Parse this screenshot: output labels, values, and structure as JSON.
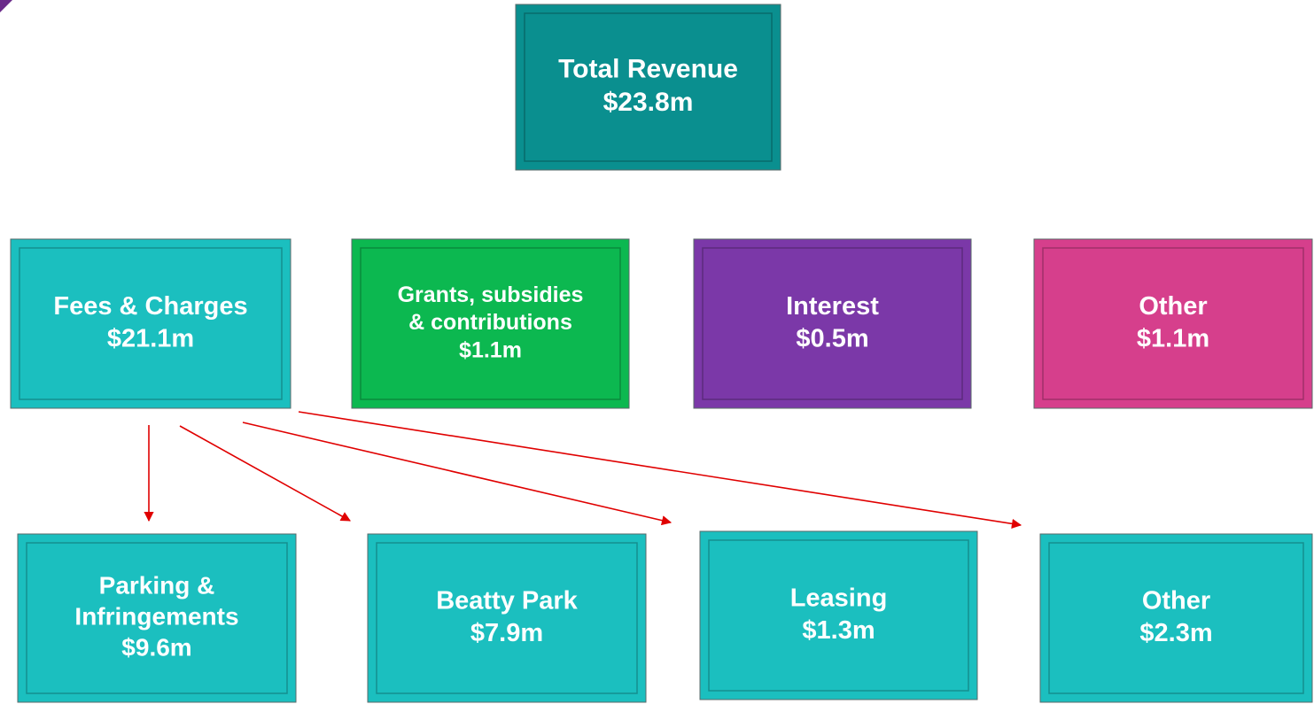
{
  "nodes": [
    {
      "lines": [
        "Total Revenue",
        "$23.8m"
      ]
    },
    {
      "lines": [
        "Fees & Charges",
        "$21.1m"
      ]
    },
    {
      "lines": [
        "Grants, subsidies",
        "& contributions",
        "$1.1m"
      ]
    },
    {
      "lines": [
        "Interest",
        "$0.5m"
      ]
    },
    {
      "lines": [
        "Other",
        "$1.1m"
      ]
    },
    {
      "lines": [
        "Parking &",
        "Infringements",
        "$9.6m"
      ]
    },
    {
      "lines": [
        "Beatty Park",
        "$7.9m"
      ]
    },
    {
      "lines": [
        "Leasing",
        "$1.3m"
      ]
    },
    {
      "lines": [
        "Other",
        "$2.3m"
      ]
    }
  ]
}
